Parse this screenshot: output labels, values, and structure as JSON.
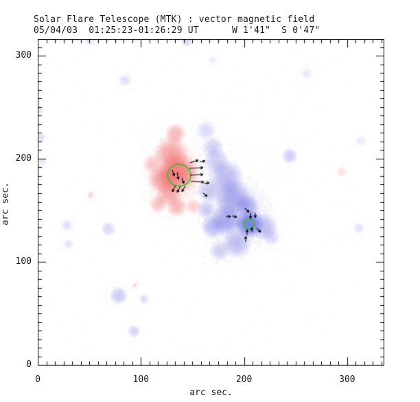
{
  "header": {
    "window_kind": "scientific plot"
  },
  "colors": {
    "positive": "#ee5050",
    "negative": "#5c5ce0",
    "speckle_positive": "#f0a0a0",
    "speckle_negative": "#9a9ae6",
    "contour": "#1ec81e",
    "axis": "#000000",
    "vector": "#000000",
    "background": "#ffffff"
  },
  "chart_data": {
    "type": "heatmap",
    "title": "Solar Flare Telescope (MTK) : vector magnetic field",
    "subtitle": "05/04/03  01:25:23-01:26:29 UT      W 1'41\"  S 0'47\"",
    "xlabel": "arc sec.",
    "ylabel": "arc sec.",
    "xlim": [
      0,
      336
    ],
    "ylim": [
      0,
      316
    ],
    "x_ticks": [
      0,
      100,
      200,
      300
    ],
    "y_ticks": [
      0,
      100,
      200,
      300
    ],
    "minor_per_major": 12,
    "grid": false,
    "legend": "none",
    "units": "arc seconds on the Sun",
    "colormap": {
      "positive_polarity": "red",
      "negative_polarity": "blue",
      "zero": "white"
    },
    "positive_regions": [
      {
        "x": 133.4,
        "y": 224.2,
        "r": 10.6,
        "a": 0.4
      },
      {
        "x": 129.4,
        "y": 205.0,
        "r": 17.3,
        "a": 0.5
      },
      {
        "x": 136.1,
        "y": 186.6,
        "r": 19.9,
        "a": 0.72
      },
      {
        "x": 120.8,
        "y": 180.6,
        "r": 14.6,
        "a": 0.5
      },
      {
        "x": 127.4,
        "y": 166.8,
        "r": 13.3,
        "a": 0.45
      },
      {
        "x": 116.8,
        "y": 156.2,
        "r": 9.3,
        "a": 0.35
      },
      {
        "x": 134.7,
        "y": 153.6,
        "r": 10.6,
        "a": 0.4
      },
      {
        "x": 150.7,
        "y": 153.6,
        "r": 8.0,
        "a": 0.25
      },
      {
        "x": 110.8,
        "y": 195.2,
        "r": 9.3,
        "a": 0.28
      },
      {
        "x": 132.7,
        "y": 185.3,
        "r": 31.9,
        "a": 0.15
      },
      {
        "x": 51.2,
        "y": 164.7,
        "r": 4.0,
        "a": 0.22
      },
      {
        "x": 294.7,
        "y": 187.3,
        "r": 5.3,
        "a": 0.16
      },
      {
        "x": 94.5,
        "y": 77.3,
        "r": 2.5,
        "a": 0.25
      }
    ],
    "negative_regions": [
      {
        "x": 173.0,
        "y": 197.3,
        "r": 13.3,
        "a": 0.3
      },
      {
        "x": 163.0,
        "y": 227.3,
        "r": 10.0,
        "a": 0.22
      },
      {
        "x": 169.7,
        "y": 210.7,
        "r": 11.0,
        "a": 0.28
      },
      {
        "x": 182.5,
        "y": 182.0,
        "r": 17.3,
        "a": 0.42
      },
      {
        "x": 165.9,
        "y": 168.8,
        "r": 12.0,
        "a": 0.33
      },
      {
        "x": 189.1,
        "y": 162.2,
        "r": 18.6,
        "a": 0.48
      },
      {
        "x": 204.9,
        "y": 136.7,
        "r": 14.6,
        "a": 0.8
      },
      {
        "x": 183.0,
        "y": 140.7,
        "r": 15.9,
        "a": 0.48
      },
      {
        "x": 169.7,
        "y": 134.0,
        "r": 12.0,
        "a": 0.38
      },
      {
        "x": 193.0,
        "y": 117.3,
        "r": 14.6,
        "a": 0.38
      },
      {
        "x": 176.3,
        "y": 110.7,
        "r": 10.6,
        "a": 0.28
      },
      {
        "x": 202.9,
        "y": 154.0,
        "r": 12.0,
        "a": 0.45
      },
      {
        "x": 219.6,
        "y": 134.0,
        "r": 13.3,
        "a": 0.38
      },
      {
        "x": 226.2,
        "y": 124.0,
        "r": 9.3,
        "a": 0.22
      },
      {
        "x": 163.0,
        "y": 150.7,
        "r": 9.3,
        "a": 0.28
      },
      {
        "x": 193.0,
        "y": 147.3,
        "r": 36.5,
        "a": 0.13
      },
      {
        "x": 244.2,
        "y": 202.7,
        "r": 8.0,
        "a": 0.3
      },
      {
        "x": 78.5,
        "y": 67.3,
        "r": 9.3,
        "a": 0.3
      },
      {
        "x": 103.1,
        "y": 64.0,
        "r": 5.3,
        "a": 0.2
      },
      {
        "x": 93.1,
        "y": 32.7,
        "r": 6.6,
        "a": 0.25
      },
      {
        "x": 68.5,
        "y": 132.0,
        "r": 7.3,
        "a": 0.22
      },
      {
        "x": 28.6,
        "y": 135.3,
        "r": 6.0,
        "a": 0.18
      },
      {
        "x": 84.5,
        "y": 276.0,
        "r": 6.6,
        "a": 0.18
      },
      {
        "x": 144.4,
        "y": 314.0,
        "r": 6.0,
        "a": 0.2
      },
      {
        "x": 49.9,
        "y": 314.0,
        "r": 4.6,
        "a": 0.15
      },
      {
        "x": 3.3,
        "y": 220.7,
        "r": 4.6,
        "a": 0.2
      },
      {
        "x": 4.7,
        "y": 197.3,
        "r": 4.0,
        "a": 0.15
      },
      {
        "x": 2.0,
        "y": 247.3,
        "r": 4.0,
        "a": 0.15
      },
      {
        "x": 29.9,
        "y": 117.3,
        "r": 5.3,
        "a": 0.15
      },
      {
        "x": 311.4,
        "y": 132.7,
        "r": 6.0,
        "a": 0.15
      },
      {
        "x": 313.4,
        "y": 217.3,
        "r": 5.3,
        "a": 0.12
      },
      {
        "x": 260.8,
        "y": 282.7,
        "r": 6.0,
        "a": 0.12
      },
      {
        "x": 169.7,
        "y": 296.0,
        "r": 4.6,
        "a": 0.12
      }
    ],
    "contours": [
      {
        "x": 137.1,
        "y": 184.0,
        "r": 10.6
      },
      {
        "x": 204.9,
        "y": 136.7,
        "r": 4.7
      }
    ],
    "vectors": [
      {
        "x1": 147.7,
        "y1": 196.0,
        "x2": 155.7,
        "y2": 198.7
      },
      {
        "x1": 157.0,
        "y1": 196.7,
        "x2": 162.3,
        "y2": 198.0
      },
      {
        "x1": 147.0,
        "y1": 190.7,
        "x2": 160.3,
        "y2": 191.3
      },
      {
        "x1": 147.7,
        "y1": 184.0,
        "x2": 160.3,
        "y2": 184.7
      },
      {
        "x1": 148.4,
        "y1": 178.0,
        "x2": 161.0,
        "y2": 177.3
      },
      {
        "x1": 161.0,
        "y1": 176.0,
        "x2": 166.3,
        "y2": 176.7
      },
      {
        "x1": 130.4,
        "y1": 189.3,
        "x2": 132.4,
        "y2": 183.3
      },
      {
        "x1": 135.1,
        "y1": 186.7,
        "x2": 136.4,
        "y2": 180.0
      },
      {
        "x1": 139.7,
        "y1": 181.3,
        "x2": 141.7,
        "y2": 176.0
      },
      {
        "x1": 133.7,
        "y1": 174.0,
        "x2": 130.4,
        "y2": 168.0
      },
      {
        "x1": 138.4,
        "y1": 173.3,
        "x2": 135.1,
        "y2": 167.3
      },
      {
        "x1": 143.0,
        "y1": 173.3,
        "x2": 139.7,
        "y2": 168.0
      },
      {
        "x1": 160.3,
        "y1": 166.7,
        "x2": 164.3,
        "y2": 163.3
      },
      {
        "x1": 200.9,
        "y1": 152.0,
        "x2": 204.9,
        "y2": 148.0
      },
      {
        "x1": 206.3,
        "y1": 147.3,
        "x2": 206.3,
        "y2": 142.0
      },
      {
        "x1": 210.9,
        "y1": 147.3,
        "x2": 210.9,
        "y2": 142.7
      },
      {
        "x1": 182.3,
        "y1": 144.0,
        "x2": 187.0,
        "y2": 144.0
      },
      {
        "x1": 188.3,
        "y1": 144.7,
        "x2": 193.0,
        "y2": 143.3
      },
      {
        "x1": 202.9,
        "y1": 126.0,
        "x2": 202.9,
        "y2": 131.3
      },
      {
        "x1": 207.6,
        "y1": 128.7,
        "x2": 207.6,
        "y2": 133.3
      },
      {
        "x1": 212.2,
        "y1": 132.7,
        "x2": 216.2,
        "y2": 128.7
      },
      {
        "x1": 201.6,
        "y1": 119.3,
        "x2": 201.6,
        "y2": 124.7
      }
    ],
    "noise": {
      "background_blue_count": 420,
      "background_pink_count": 130,
      "seed": 42
    }
  }
}
